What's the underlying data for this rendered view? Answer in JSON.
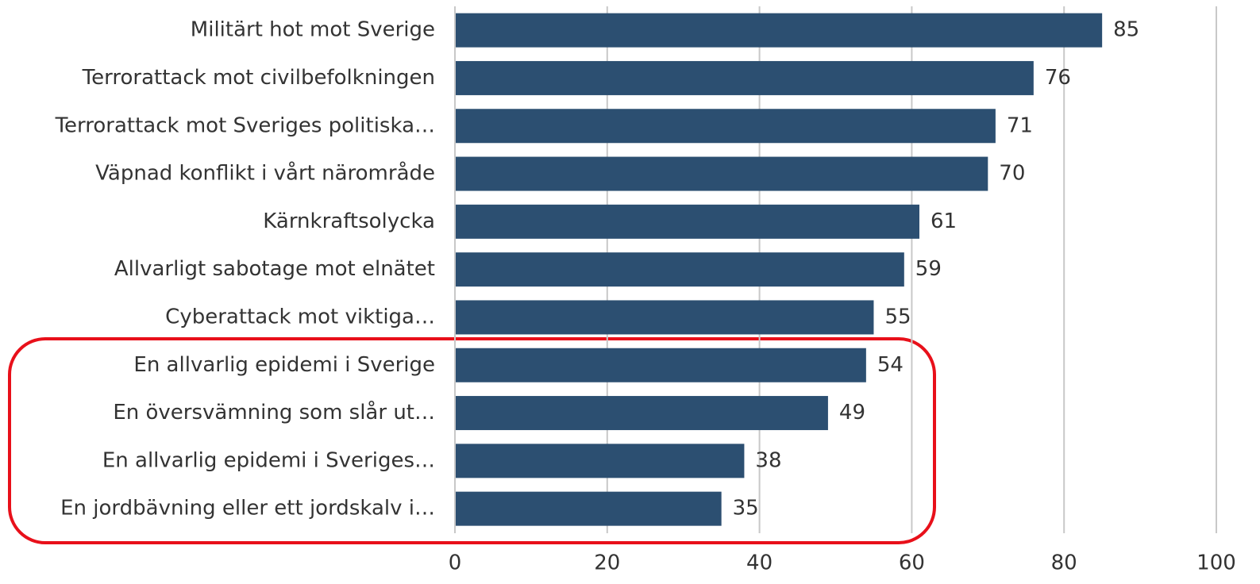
{
  "chart_data": {
    "type": "barh",
    "categories": [
      "Militärt hot mot Sverige",
      "Terrorattack mot civilbefolkningen",
      "Terrorattack mot Sveriges politiska…",
      "Väpnad konflikt i vårt närområde",
      "Kärnkraftsolycka",
      "Allvarligt sabotage mot elnätet",
      "Cyberattack mot viktiga…",
      "En allvarlig epidemi i Sverige",
      "En översvämning som slår ut…",
      "En allvarlig epidemi i Sveriges…",
      "En jordbävning eller ett jordskalv i…"
    ],
    "values": [
      85,
      76,
      71,
      70,
      61,
      59,
      55,
      54,
      49,
      38,
      35
    ],
    "color": "#2c4f71",
    "xlim": [
      0,
      100
    ],
    "xticks": [
      0,
      20,
      40,
      60,
      80,
      100
    ],
    "grid": true
  }
}
